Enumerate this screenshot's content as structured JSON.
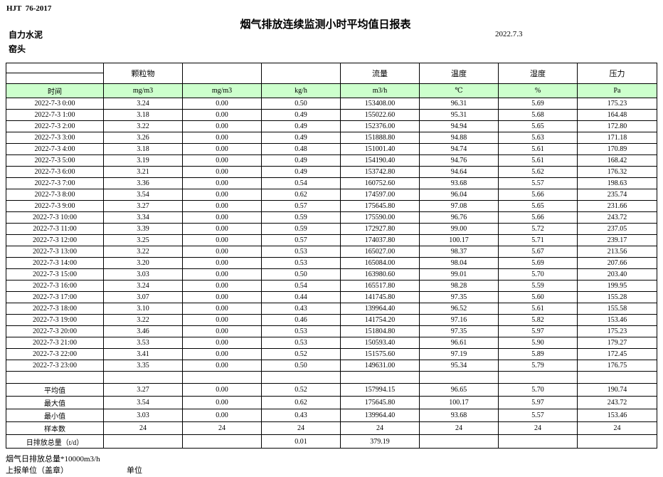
{
  "page": {
    "standard_code": "HJT  76-2017",
    "title": "烟气排放连续监测小时平均值日报表",
    "company": "自力水泥",
    "date": "2022.7.3",
    "location": "窑头"
  },
  "table": {
    "header_groups": [
      "",
      "颗粒物",
      "",
      "",
      "流量",
      "温度",
      "湿度",
      "压力"
    ],
    "header_units": [
      "时间",
      "mg/m3",
      "mg/m3",
      "kg/h",
      "m3/h",
      "℃",
      "%",
      "Pa"
    ],
    "rows": [
      [
        "2022-7-3 0:00",
        "3.24",
        "0.00",
        "0.50",
        "153408.00",
        "96.31",
        "5.69",
        "175.23"
      ],
      [
        "2022-7-3 1:00",
        "3.18",
        "0.00",
        "0.49",
        "155022.60",
        "95.31",
        "5.68",
        "164.48"
      ],
      [
        "2022-7-3 2:00",
        "3.22",
        "0.00",
        "0.49",
        "152376.00",
        "94.94",
        "5.65",
        "172.80"
      ],
      [
        "2022-7-3 3:00",
        "3.26",
        "0.00",
        "0.49",
        "151888.80",
        "94.88",
        "5.63",
        "171.18"
      ],
      [
        "2022-7-3 4:00",
        "3.18",
        "0.00",
        "0.48",
        "151001.40",
        "94.74",
        "5.61",
        "170.89"
      ],
      [
        "2022-7-3 5:00",
        "3.19",
        "0.00",
        "0.49",
        "154190.40",
        "94.76",
        "5.61",
        "168.42"
      ],
      [
        "2022-7-3 6:00",
        "3.21",
        "0.00",
        "0.49",
        "153742.80",
        "94.64",
        "5.62",
        "176.32"
      ],
      [
        "2022-7-3 7:00",
        "3.36",
        "0.00",
        "0.54",
        "160752.60",
        "93.68",
        "5.57",
        "198.63"
      ],
      [
        "2022-7-3 8:00",
        "3.54",
        "0.00",
        "0.62",
        "174597.00",
        "96.04",
        "5.66",
        "235.74"
      ],
      [
        "2022-7-3 9:00",
        "3.27",
        "0.00",
        "0.57",
        "175645.80",
        "97.08",
        "5.65",
        "231.66"
      ],
      [
        "2022-7-3 10:00",
        "3.34",
        "0.00",
        "0.59",
        "175590.00",
        "96.76",
        "5.66",
        "243.72"
      ],
      [
        "2022-7-3 11:00",
        "3.39",
        "0.00",
        "0.59",
        "172927.80",
        "99.00",
        "5.72",
        "237.05"
      ],
      [
        "2022-7-3 12:00",
        "3.25",
        "0.00",
        "0.57",
        "174037.80",
        "100.17",
        "5.71",
        "239.17"
      ],
      [
        "2022-7-3 13:00",
        "3.22",
        "0.00",
        "0.53",
        "165027.00",
        "98.37",
        "5.67",
        "213.56"
      ],
      [
        "2022-7-3 14:00",
        "3.20",
        "0.00",
        "0.53",
        "165084.00",
        "98.04",
        "5.69",
        "207.66"
      ],
      [
        "2022-7-3 15:00",
        "3.03",
        "0.00",
        "0.50",
        "163980.60",
        "99.01",
        "5.70",
        "203.40"
      ],
      [
        "2022-7-3 16:00",
        "3.24",
        "0.00",
        "0.54",
        "165517.80",
        "98.28",
        "5.59",
        "199.95"
      ],
      [
        "2022-7-3 17:00",
        "3.07",
        "0.00",
        "0.44",
        "141745.80",
        "97.35",
        "5.60",
        "155.28"
      ],
      [
        "2022-7-3 18:00",
        "3.10",
        "0.00",
        "0.43",
        "139964.40",
        "96.52",
        "5.61",
        "155.58"
      ],
      [
        "2022-7-3 19:00",
        "3.22",
        "0.00",
        "0.46",
        "141754.20",
        "97.16",
        "5.82",
        "153.46"
      ],
      [
        "2022-7-3 20:00",
        "3.46",
        "0.00",
        "0.53",
        "151804.80",
        "97.35",
        "5.97",
        "175.23"
      ],
      [
        "2022-7-3 21:00",
        "3.53",
        "0.00",
        "0.53",
        "150593.40",
        "96.61",
        "5.90",
        "179.27"
      ],
      [
        "2022-7-3 22:00",
        "3.41",
        "0.00",
        "0.52",
        "151575.60",
        "97.19",
        "5.89",
        "172.45"
      ],
      [
        "2022-7-3 23:00",
        "3.35",
        "0.00",
        "0.50",
        "149631.00",
        "95.34",
        "5.79",
        "176.75"
      ]
    ],
    "summary_rows": [
      [
        "平均值",
        "3.27",
        "0.00",
        "0.52",
        "157994.15",
        "96.65",
        "5.70",
        "190.74"
      ],
      [
        "最大值",
        "3.54",
        "0.00",
        "0.62",
        "175645.80",
        "100.17",
        "5.97",
        "243.72"
      ],
      [
        "最小值",
        "3.03",
        "0.00",
        "0.43",
        "139964.40",
        "93.68",
        "5.57",
        "153.46"
      ],
      [
        "样本数",
        "24",
        "24",
        "24",
        "24",
        "24",
        "24",
        "24"
      ],
      [
        "日排放总量（t/d）",
        "",
        "",
        "0.01",
        "379.19",
        "",
        "",
        ""
      ]
    ]
  },
  "footer": {
    "note": "烟气日排放总量*10000m3/h",
    "report_unit_label": "上报单位（盖章）",
    "unit_label": "单位"
  },
  "colors": {
    "header_green": "#ccffcc",
    "border": "#000000"
  }
}
